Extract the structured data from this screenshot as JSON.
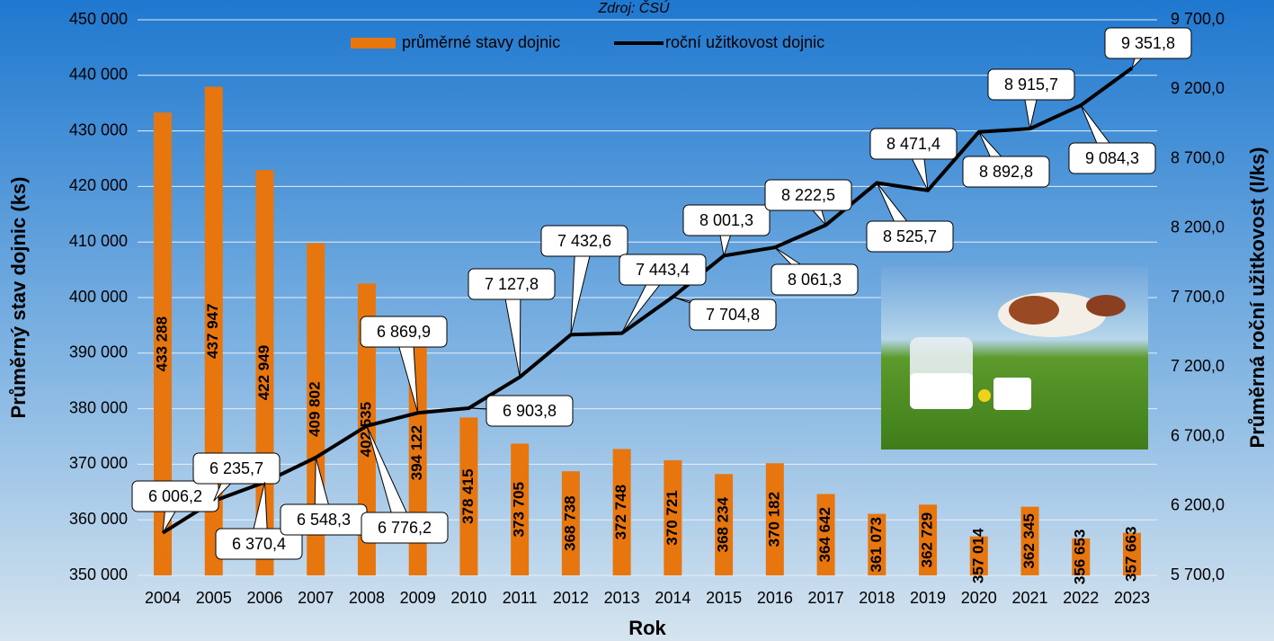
{
  "chart_data": {
    "type": "bar-line",
    "source": "Zdroj: ČSÚ",
    "x_title": "Rok",
    "y_title": "Průměrný stav dojnic (ks)",
    "y2_title": "Průměrná roční užitkovost (l/ks)",
    "categories": [
      "2004",
      "2005",
      "2006",
      "2007",
      "2008",
      "2009",
      "2010",
      "2011",
      "2012",
      "2013",
      "2014",
      "2015",
      "2016",
      "2017",
      "2018",
      "2019",
      "2020",
      "2021",
      "2022",
      "2023"
    ],
    "series": [
      {
        "name": "průměrné stavy dojnic",
        "type": "bar",
        "axis": "y",
        "color": "#e8760f",
        "values": [
          433288,
          437947,
          422949,
          409802,
          402535,
          394122,
          378415,
          373705,
          368738,
          372748,
          370721,
          368234,
          370182,
          364642,
          361073,
          362729,
          357014,
          362345,
          356653,
          357663
        ],
        "value_labels": [
          "433 288",
          "437 947",
          "422 949",
          "409 802",
          "402 535",
          "394 122",
          "378 415",
          "373 705",
          "368 738",
          "372 748",
          "370 721",
          "368 234",
          "370 182",
          "364 642",
          "361 073",
          "362 729",
          "357 014",
          "362 345",
          "356 653",
          "357 663"
        ]
      },
      {
        "name": "roční užitkovost dojnic",
        "type": "line",
        "axis": "y2",
        "color": "#000000",
        "values": [
          6006.2,
          6235.7,
          6370.4,
          6548.3,
          6776.2,
          6869.9,
          6903.8,
          7127.8,
          7432.6,
          7443.4,
          7704.8,
          8001.3,
          8061.3,
          8222.5,
          8525.7,
          8471.4,
          8892.8,
          8915.7,
          9084.3,
          9351.8
        ],
        "value_labels": [
          "6 006,2",
          "6 235,7",
          "6 370,4",
          "6 548,3",
          "6 776,2",
          "6 869,9",
          "6 903,8",
          "7 127,8",
          "7 432,6",
          "7 443,4",
          "7 704,8",
          "8 001,3",
          "8 061,3",
          "8 222,5",
          "8 525,7",
          "8 471,4",
          "8 892,8",
          "8 915,7",
          "9 084,3",
          "9 351,8"
        ]
      }
    ],
    "ylim": [
      350000,
      450000
    ],
    "yticks": [
      {
        "value": 350000,
        "label": "350 000"
      },
      {
        "value": 360000,
        "label": "360 000"
      },
      {
        "value": 370000,
        "label": "370 000"
      },
      {
        "value": 380000,
        "label": "380 000"
      },
      {
        "value": 390000,
        "label": "390 000"
      },
      {
        "value": 400000,
        "label": "400 000"
      },
      {
        "value": 410000,
        "label": "410 000"
      },
      {
        "value": 420000,
        "label": "420 000"
      },
      {
        "value": 430000,
        "label": "430 000"
      },
      {
        "value": 440000,
        "label": "440 000"
      },
      {
        "value": 450000,
        "label": "450 000"
      }
    ],
    "y2lim": [
      5700,
      9700
    ],
    "y2ticks": [
      {
        "value": 5700,
        "label": "5 700,0"
      },
      {
        "value": 6200,
        "label": "6 200,0"
      },
      {
        "value": 6700,
        "label": "6 700,0"
      },
      {
        "value": 7200,
        "label": "7 200,0"
      },
      {
        "value": 7700,
        "label": "7 700,0"
      },
      {
        "value": 8200,
        "label": "8 200,0"
      },
      {
        "value": 8700,
        "label": "8 700,0"
      },
      {
        "value": 9200,
        "label": "9 200,0"
      },
      {
        "value": 9700,
        "label": "9 700,0"
      }
    ],
    "grid": true
  }
}
